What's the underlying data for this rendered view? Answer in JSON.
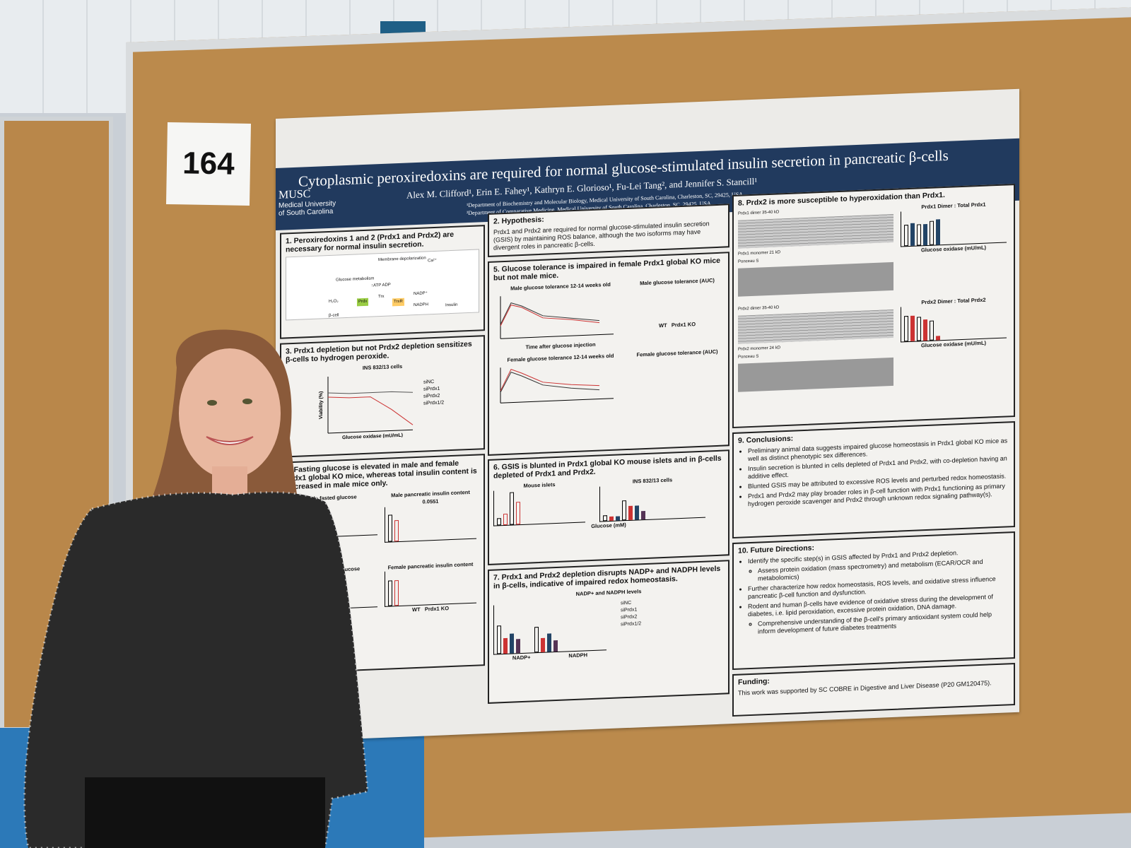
{
  "sign_number": "164",
  "poster": {
    "title": "Cytoplasmic peroxiredoxins are required for normal glucose-stimulated insulin secretion in pancreatic β-cells",
    "authors": "Alex M. Clifford¹, Erin E. Fahey¹, Kathryn E. Glorioso¹, Fu-Lei Tang², and Jennifer S. Stancill¹",
    "affiliations": [
      "¹Department of Biochemistry and Molecular Biology, Medical University of South Carolina, Charleston, SC, 29425, USA",
      "²Department of Comparative Medicine, Medical University of South Carolina, Charleston, SC, 29425, USA"
    ],
    "logo": {
      "name": "MUSC",
      "sub1": "Medical University",
      "sub2": "of South Carolina"
    },
    "panels": {
      "p1": {
        "heading": "1. Peroxiredoxins 1 and 2 (Prdx1 and Prdx2) are necessary for normal insulin secretion.",
        "labels": [
          "Membrane depolarization",
          "Glucose metabolism",
          "↑ATP ADP",
          "Ca²⁺",
          "H₂O₂",
          "Prdx",
          "Trx",
          "TrxR",
          "NADP⁺",
          "NADPH",
          "Insulin",
          "β-cell"
        ]
      },
      "p2": {
        "heading": "2. Hypothesis:",
        "text": "Prdx1 and Prdx2 are required for normal glucose-stimulated insulin secretion (GSIS) by maintaining ROS balance, although the two isoforms may have divergent roles in pancreatic β-cells."
      },
      "p3": {
        "heading": "3. Prdx1 depletion but not Prdx2 depletion sensitizes β-cells to hydrogen peroxide.",
        "chart_title": "INS 832/13 cells",
        "legend": [
          "siNC",
          "siPrdx1",
          "siPrdx2",
          "siPrdx1/2"
        ],
        "xlabel": "Glucose oxidase (mU/mL)",
        "ylabel": "Viability (%)"
      },
      "p4": {
        "heading": "4. Fasting glucose is elevated in male and female Prdx1 global KO mice, whereas total insulin content is decreased in male mice only.",
        "charts": [
          "Male fasted glucose",
          "Male pancreatic insulin content",
          "Female fasted glucose",
          "Female pancreatic insulin content"
        ],
        "pvalue": "0.0551",
        "groups": [
          "WT",
          "Prdx1 KO"
        ]
      },
      "p5": {
        "heading": "5. Glucose tolerance is impaired in female Prdx1 global KO mice but not male mice.",
        "charts": [
          "Male glucose tolerance 12-14 weeks old",
          "Male glucose tolerance (AUC)",
          "Female glucose tolerance 12-14 weeks old",
          "Female glucose tolerance (AUC)"
        ],
        "xlabel": "Time after glucose injection",
        "legend": [
          "WT",
          "Prdx1 KO"
        ]
      },
      "p6": {
        "heading": "6. GSIS is blunted in Prdx1 global KO mouse islets and in β-cells depleted of Prdx1 and Prdx2.",
        "charts": [
          "Mouse islets",
          "INS 832/13 cells"
        ],
        "xlabel": "Glucose (mM)"
      },
      "p7": {
        "heading": "7. Prdx1 and Prdx2 depletion disrupts NADP+ and NADPH levels in β-cells, indicative of impaired redox homeostasis.",
        "chart_title": "NADP+ and NADPH levels",
        "categories": [
          "NADP+",
          "NADPH"
        ],
        "legend": [
          "siNC",
          "siPrdx1",
          "siPrdx2",
          "siPrdx1/2"
        ]
      },
      "p8": {
        "heading": "8. Prdx2 is more susceptible to hyperoxidation than Prdx1.",
        "charts": [
          "Prdx1 Dimer : Total Prdx1",
          "Prdx2 Dimer : Total Prdx2"
        ],
        "blot_labels": [
          "Prdx1 dimer 35-40 kD",
          "Prdx1 monomer 21 kD",
          "Ponceau S",
          "Prdx2 dimer 35-40 kD",
          "Prdx2 monomer 24 kD",
          "Ponceau S"
        ],
        "xlabel": "Glucose oxidase (mU/mL)"
      },
      "p9": {
        "heading": "9. Conclusions:",
        "items": [
          "Preliminary animal data suggests impaired glucose homeostasis in Prdx1 global KO mice as well as distinct phenotypic sex differences.",
          "Insulin secretion is blunted in cells depleted of Prdx1 and Prdx2, with co-depletion having an additive effect.",
          "Blunted GSIS may be attributed to excessive ROS levels and perturbed redox homeostasis.",
          "Prdx1 and Prdx2 may play broader roles in β-cell function with Prdx1 functioning as primary hydrogen peroxide scavenger and Prdx2 through unknown redox signaling pathway(s)."
        ]
      },
      "p10": {
        "heading": "10. Future Directions:",
        "items": [
          "Identify the specific step(s) in GSIS affected by Prdx1 and Prdx2 depletion.",
          "Assess protein oxidation (mass spectrometry) and metabolism (ECAR/OCR and metabolomics)",
          "Further characterize how redox homeostasis, ROS levels, and oxidative stress influence pancreatic β-cell function and dysfunction.",
          "Rodent and human β-cells have evidence of oxidative stress during the development of diabetes, i.e. lipid peroxidation, excessive protein oxidation, DNA damage.",
          "Comprehensive understanding of the β-cell's primary antioxidant system could help inform development of future diabetes treatments"
        ]
      },
      "funding": {
        "heading": "Funding:",
        "text": "This work was supported by SC COBRE in Digestive and Liver Disease (P20 GM120475)."
      }
    }
  }
}
